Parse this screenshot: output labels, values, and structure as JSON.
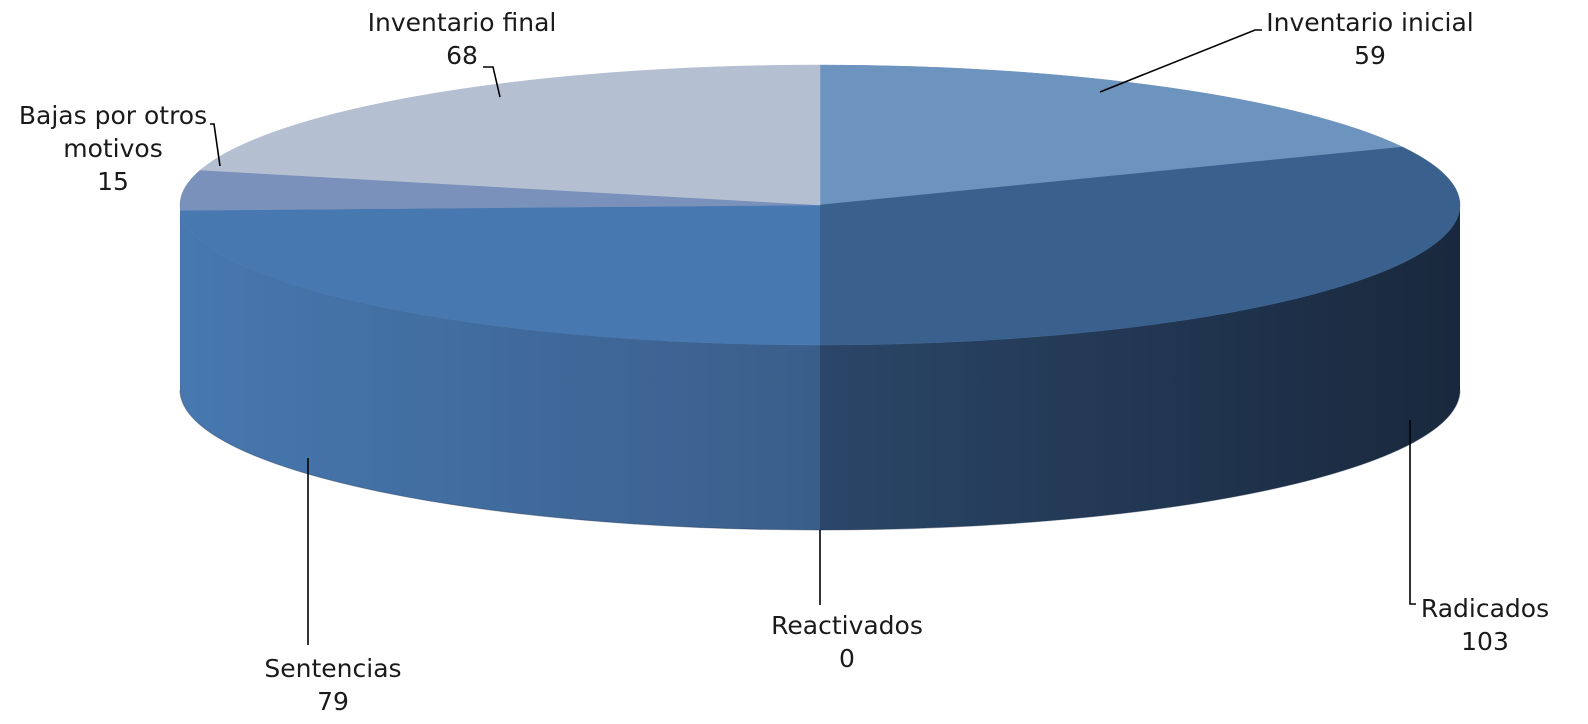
{
  "chart_data": {
    "type": "pie",
    "title": "",
    "style": "3d-exploded-none",
    "legend": "none",
    "data_labels": "category-and-value",
    "slices": [
      {
        "label": "Inventario inicial",
        "value": 59,
        "color": "#6d93bf"
      },
      {
        "label": "Radicados",
        "value": 103,
        "color": "#3a618d"
      },
      {
        "label": "Reactivados",
        "value": 0,
        "color": "#2f4e73"
      },
      {
        "label": "Sentencias",
        "value": 79,
        "color": "#4878b0"
      },
      {
        "label": "Bajas por otros motivos",
        "value": 15,
        "color": "#7991bb"
      },
      {
        "label": "Inventario final",
        "value": 68,
        "color": "#b5bfd2"
      }
    ]
  }
}
